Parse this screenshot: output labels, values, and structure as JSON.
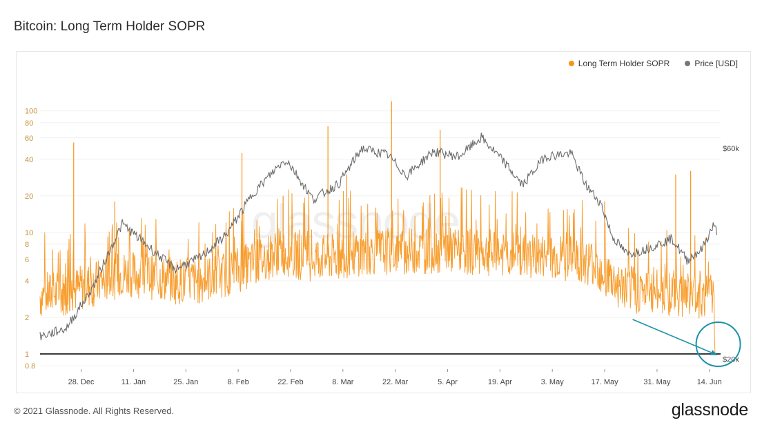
{
  "title": "Bitcoin: Long Term Holder SOPR",
  "watermark": "glassnode",
  "footer": {
    "copyright": "© 2021 Glassnode. All Rights Reserved.",
    "logo": "glassnode"
  },
  "colors": {
    "sopr": "#f7931a",
    "price": "#6b6b6b",
    "baseline": "#1f1f1f",
    "annotation": "#1a93a8",
    "left_axis": "#c9923a"
  },
  "chart_data": {
    "type": "line",
    "title": "Bitcoin: Long Term Holder SOPR",
    "legend_position": "top-right",
    "grid": true,
    "x_tick_labels": [
      "28. Dec",
      "11. Jan",
      "25. Jan",
      "8. Feb",
      "22. Feb",
      "8. Mar",
      "22. Mar",
      "5. Apr",
      "19. Apr",
      "3. May",
      "17. May",
      "31. May",
      "14. Jun"
    ],
    "x_range": [
      "2020-12-17",
      "2021-06-17"
    ],
    "y_left": {
      "scale": "log",
      "range": [
        0.75,
        140
      ],
      "tick_labels": [
        "0.8",
        "1",
        "2",
        "4",
        "6",
        "8",
        "10",
        "20",
        "40",
        "60",
        "80",
        "100"
      ]
    },
    "y_right": {
      "scale": "log",
      "range": [
        19000,
        80000
      ],
      "tick_labels": [
        "$20k",
        "$60k"
      ]
    },
    "baseline_value": 1,
    "series": [
      {
        "name": "Long Term Holder SOPR",
        "axis": "left",
        "color": "#f7931a",
        "x": [
          "2020-12-17",
          "2020-12-24",
          "2021-01-01",
          "2021-01-08",
          "2021-01-15",
          "2021-01-22",
          "2021-01-29",
          "2021-02-05",
          "2021-02-12",
          "2021-02-19",
          "2021-02-26",
          "2021-03-05",
          "2021-03-12",
          "2021-03-19",
          "2021-03-26",
          "2021-04-02",
          "2021-04-09",
          "2021-04-16",
          "2021-04-23",
          "2021-04-30",
          "2021-05-07",
          "2021-05-14",
          "2021-05-21",
          "2021-05-28",
          "2021-06-04",
          "2021-06-11",
          "2021-06-15",
          "2021-06-16"
        ],
        "values": [
          3.0,
          3.2,
          3.8,
          4.6,
          4.4,
          4.0,
          4.0,
          4.6,
          5.5,
          7.0,
          6.2,
          6.2,
          6.8,
          7.0,
          7.0,
          7.2,
          7.0,
          6.8,
          6.5,
          6.2,
          6.2,
          5.6,
          3.6,
          3.2,
          3.2,
          3.0,
          3.0,
          1.0
        ],
        "spikes": [
          {
            "x": "2020-12-26",
            "y": 55
          },
          {
            "x": "2021-01-06",
            "y": 18
          },
          {
            "x": "2021-02-09",
            "y": 45
          },
          {
            "x": "2021-02-20",
            "y": 20
          },
          {
            "x": "2021-03-04",
            "y": 75
          },
          {
            "x": "2021-03-09",
            "y": 30
          },
          {
            "x": "2021-03-21",
            "y": 120
          },
          {
            "x": "2021-04-03",
            "y": 70
          },
          {
            "x": "2021-05-17",
            "y": 18
          },
          {
            "x": "2021-06-05",
            "y": 30
          },
          {
            "x": "2021-06-09",
            "y": 32
          },
          {
            "x": "2021-06-13",
            "y": 9
          }
        ]
      },
      {
        "name": "Price [USD]",
        "axis": "right",
        "color": "#6b6b6b",
        "x": [
          "2020-12-17",
          "2020-12-24",
          "2020-12-31",
          "2021-01-08",
          "2021-01-15",
          "2021-01-22",
          "2021-01-29",
          "2021-02-05",
          "2021-02-12",
          "2021-02-19",
          "2021-02-21",
          "2021-02-28",
          "2021-03-07",
          "2021-03-13",
          "2021-03-20",
          "2021-03-25",
          "2021-04-01",
          "2021-04-08",
          "2021-04-14",
          "2021-04-20",
          "2021-04-25",
          "2021-05-01",
          "2021-05-08",
          "2021-05-12",
          "2021-05-16",
          "2021-05-19",
          "2021-05-23",
          "2021-05-28",
          "2021-06-04",
          "2021-06-08",
          "2021-06-12",
          "2021-06-15",
          "2021-06-16"
        ],
        "values": [
          22500,
          23500,
          29000,
          40500,
          36000,
          32000,
          34000,
          38500,
          47500,
          55000,
          56500,
          46000,
          50000,
          60000,
          58000,
          52000,
          59000,
          57500,
          63500,
          56000,
          49500,
          57500,
          58500,
          49500,
          45000,
          38000,
          34500,
          35500,
          37500,
          33500,
          35500,
          40000,
          39000
        ]
      }
    ]
  }
}
